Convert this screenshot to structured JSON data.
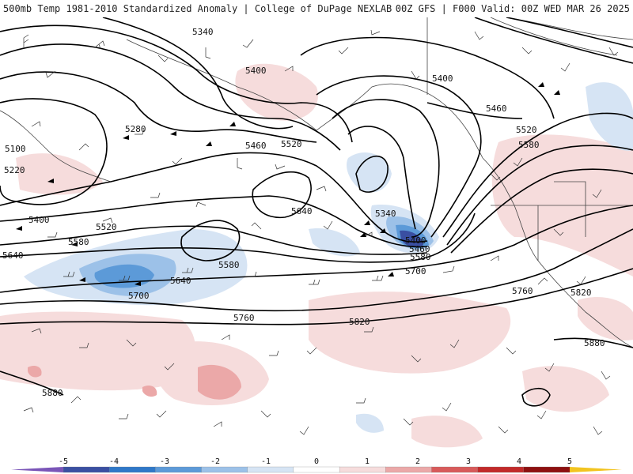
{
  "header": {
    "title_left": "500mb Temp 1981-2010 Standardized Anomaly | College of DuPage NEXLAB",
    "title_right": "00Z GFS | F000 Valid: 00Z WED MAR 26 2025"
  },
  "contour_labels": [
    "5340",
    "5400",
    "5400",
    "5460",
    "5520",
    "5580",
    "5280",
    "5100",
    "5220",
    "5400",
    "5460",
    "5520",
    "5640",
    "5580",
    "5640",
    "5520",
    "5580",
    "5640",
    "5700",
    "5760",
    "5340",
    "5400",
    "5460",
    "5580",
    "5700",
    "5820",
    "5760",
    "5820",
    "5880",
    "5880"
  ],
  "colorbar": {
    "ticks": [
      "-5",
      "-4",
      "-3",
      "-2",
      "-1",
      "0",
      "1",
      "2",
      "3",
      "4",
      "5"
    ],
    "colors": [
      "#7a55b8",
      "#3a4fa2",
      "#2f78c8",
      "#5c9ad8",
      "#9cc1e8",
      "#d6e4f4",
      "#ffffff",
      "#f6dcdc",
      "#eba8a8",
      "#d85a5a",
      "#c22a2a",
      "#8e1010",
      "#f2c420"
    ]
  }
}
